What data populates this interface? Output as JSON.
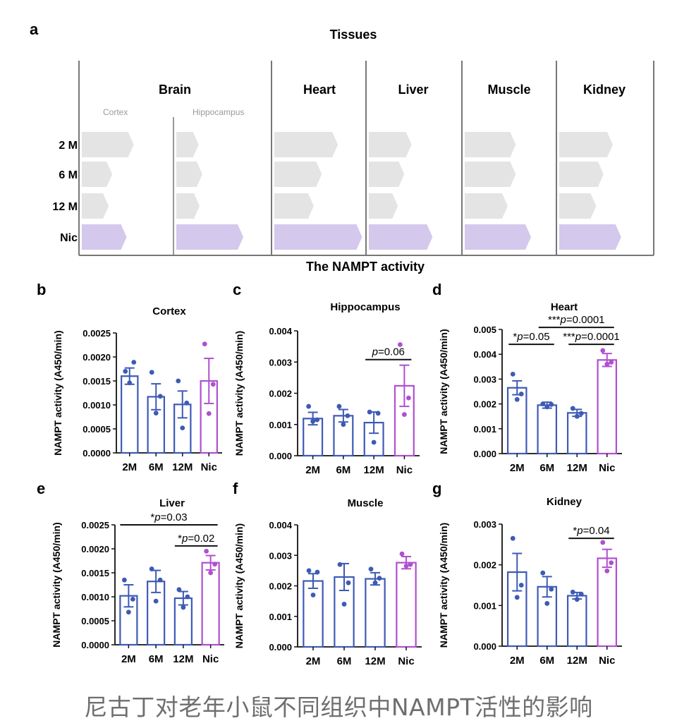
{
  "panel_a": {
    "letter": "a",
    "top_title": "Tissues",
    "bottom_title": "The NAMPT activity",
    "tissues": [
      "Brain",
      "Heart",
      "Liver",
      "Muscle",
      "Kidney"
    ],
    "sub_columns": [
      "Cortex",
      "Hippocampus"
    ],
    "rows": [
      "2 M",
      "6 M",
      "12 M",
      "Nic"
    ],
    "bar_color": "#e4e4e4",
    "nic_color": "#d4c8ec",
    "relative_levels": {
      "Cortex": [
        0.58,
        0.34,
        0.3,
        0.5
      ],
      "Hippocampus": [
        0.24,
        0.28,
        0.25,
        0.72
      ],
      "Heart": [
        0.71,
        0.53,
        0.44,
        0.98
      ],
      "Liver": [
        0.47,
        0.39,
        0.32,
        0.7
      ],
      "Muscle": [
        0.57,
        0.57,
        0.48,
        0.74
      ],
      "Kidney": [
        0.58,
        0.48,
        0.4,
        0.67
      ]
    }
  },
  "chart_data": [
    {
      "id": "b",
      "letter": "b",
      "type": "bar",
      "title": "Cortex",
      "ylabel": "NAMPT activity (A450/min)",
      "categories": [
        "2M",
        "6M",
        "12M",
        "Nic"
      ],
      "values": [
        0.0016,
        0.00117,
        0.00101,
        0.0015
      ],
      "sem": [
        0.00017,
        0.00027,
        0.00028,
        0.00047
      ],
      "points": [
        [
          0.0017,
          0.00189,
          0.00146
        ],
        [
          0.00168,
          0.00118,
          0.00083
        ],
        [
          0.0015,
          0.00104,
          0.00052
        ],
        [
          0.00227,
          0.00143,
          0.00082
        ]
      ],
      "ylim": [
        0,
        0.0025
      ],
      "yticks": [
        0,
        0.0005,
        0.001,
        0.0015,
        0.002,
        0.0025
      ],
      "ytick_labels": [
        "0.0000",
        "0.0005",
        "0.0010",
        "0.0015",
        "0.0020",
        "0.0025"
      ],
      "annotations": []
    },
    {
      "id": "c",
      "letter": "c",
      "type": "bar",
      "title": "Hippocampus",
      "ylabel": "NAMPT activity (A450/min)",
      "categories": [
        "2M",
        "6M",
        "12M",
        "Nic"
      ],
      "values": [
        0.00119,
        0.00128,
        0.00106,
        0.00224
      ],
      "sem": [
        0.0002,
        0.0002,
        0.00034,
        0.00066
      ],
      "points": [
        [
          0.00158,
          0.00115,
          0.0011
        ],
        [
          0.00158,
          0.00128,
          0.001
        ],
        [
          0.0014,
          0.00136,
          0.00043
        ],
        [
          0.00356,
          0.00185,
          0.00132
        ]
      ],
      "ylim": [
        0,
        0.004
      ],
      "yticks": [
        0,
        0.001,
        0.002,
        0.003,
        0.004
      ],
      "ytick_labels": [
        "0.000",
        "0.001",
        "0.002",
        "0.003",
        "0.004"
      ],
      "annotations": [
        {
          "from": 2,
          "to": 3,
          "y": 0.00308,
          "stars": "",
          "p": "p",
          "rest": "=0.06"
        }
      ]
    },
    {
      "id": "d",
      "letter": "d",
      "type": "bar",
      "title": "Heart",
      "ylabel": "NAMPT activity (A450/min)",
      "categories": [
        "2M",
        "6M",
        "12M",
        "Nic"
      ],
      "values": [
        0.00265,
        0.00195,
        0.00164,
        0.00377
      ],
      "sem": [
        0.00028,
        0.00012,
        0.00014,
        0.00026
      ],
      "points": [
        [
          0.0032,
          0.0024,
          0.00218
        ],
        [
          0.002,
          0.00198,
          0.00188
        ],
        [
          0.00182,
          0.00162,
          0.0015
        ],
        [
          0.00415,
          0.00368,
          0.0036
        ]
      ],
      "ylim": [
        0,
        0.005
      ],
      "yticks": [
        0,
        0.001,
        0.002,
        0.003,
        0.004,
        0.005
      ],
      "ytick_labels": [
        "0.000",
        "0.001",
        "0.002",
        "0.003",
        "0.004",
        "0.005"
      ],
      "annotations": [
        {
          "from": 0,
          "to": 1,
          "y": 0.0044,
          "stars": "*",
          "p": "p",
          "rest": "=0.05"
        },
        {
          "from": 2,
          "to": 3,
          "y": 0.0044,
          "stars": "***",
          "p": "p",
          "rest": "=0.0001"
        },
        {
          "from": 1,
          "to": 3,
          "y": 0.00508,
          "stars": "***",
          "p": "p",
          "rest": "=0.0001"
        }
      ]
    },
    {
      "id": "e",
      "letter": "e",
      "type": "bar",
      "title": "Liver",
      "ylabel": "NAMPT activity (A450/min)",
      "categories": [
        "2M",
        "6M",
        "12M",
        "Nic"
      ],
      "values": [
        0.00102,
        0.00132,
        0.00097,
        0.00171
      ],
      "sem": [
        0.00023,
        0.00023,
        0.00014,
        0.00015
      ],
      "points": [
        [
          0.00135,
          0.00095,
          0.00068
        ],
        [
          0.00158,
          0.00135,
          0.00091
        ],
        [
          0.00115,
          0.001,
          0.00078
        ],
        [
          0.00195,
          0.00168,
          0.0015
        ]
      ],
      "ylim": [
        0,
        0.0025
      ],
      "yticks": [
        0,
        0.0005,
        0.001,
        0.0015,
        0.002,
        0.0025
      ],
      "ytick_labels": [
        "0.0000",
        "0.0005",
        "0.0010",
        "0.0015",
        "0.0020",
        "0.0025"
      ],
      "annotations": [
        {
          "from": 0,
          "to": 3,
          "y": 0.0025,
          "stars": "*",
          "p": "p",
          "rest": "=0.03"
        },
        {
          "from": 2,
          "to": 3,
          "y": 0.00206,
          "stars": "*",
          "p": "p",
          "rest": "=0.02"
        }
      ]
    },
    {
      "id": "f",
      "letter": "f",
      "type": "bar",
      "title": "Muscle",
      "ylabel": "NAMPT activity (A450/min)",
      "categories": [
        "2M",
        "6M",
        "12M",
        "Nic"
      ],
      "values": [
        0.00216,
        0.00229,
        0.00223,
        0.00276
      ],
      "sem": [
        0.00024,
        0.00044,
        0.0002,
        0.0002
      ],
      "points": [
        [
          0.0025,
          0.00245,
          0.0017
        ],
        [
          0.0027,
          0.0021,
          0.0014
        ],
        [
          0.00255,
          0.00225,
          0.0021
        ],
        [
          0.00305,
          0.0027,
          0.00265
        ]
      ],
      "ylim": [
        0,
        0.004
      ],
      "yticks": [
        0,
        0.001,
        0.002,
        0.003,
        0.004
      ],
      "ytick_labels": [
        "0.000",
        "0.001",
        "0.002",
        "0.003",
        "0.004"
      ],
      "annotations": []
    },
    {
      "id": "g",
      "letter": "g",
      "type": "bar",
      "title": "Kidney",
      "ylabel": "NAMPT activity (A450/min)",
      "categories": [
        "2M",
        "6M",
        "12M",
        "Nic"
      ],
      "values": [
        0.00182,
        0.00146,
        0.00124,
        0.00216
      ],
      "sem": [
        0.00046,
        0.00025,
        8e-05,
        0.00022
      ],
      "points": [
        [
          0.00265,
          0.0015,
          0.0012
        ],
        [
          0.0018,
          0.0014,
          0.00105
        ],
        [
          0.00133,
          0.00128,
          0.00115
        ],
        [
          0.00255,
          0.00205,
          0.00185
        ]
      ],
      "ylim": [
        0,
        0.003
      ],
      "yticks": [
        0,
        0.001,
        0.002,
        0.003
      ],
      "ytick_labels": [
        "0.000",
        "0.001",
        "0.002",
        "0.003"
      ],
      "annotations": [
        {
          "from": 2,
          "to": 3,
          "y": 0.00265,
          "stars": "*",
          "p": "p",
          "rest": "=0.04"
        }
      ]
    }
  ],
  "colors": {
    "age_series": "#3d5ab5",
    "nic_series": "#b04fd0",
    "axis": "#111111"
  },
  "caption": "尼古丁对老年小鼠不同组织中NAMPT活性的影响"
}
